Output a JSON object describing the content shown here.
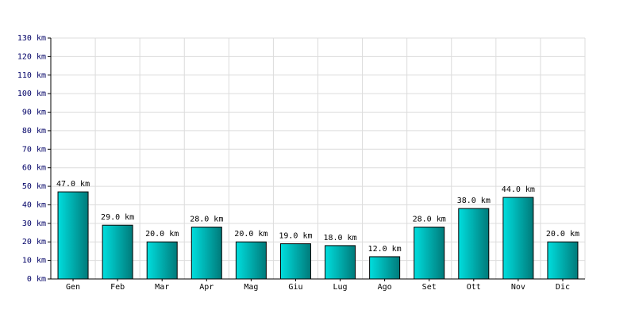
{
  "chart_data": {
    "type": "bar",
    "categories": [
      "Gen",
      "Feb",
      "Mar",
      "Apr",
      "Mag",
      "Giu",
      "Lug",
      "Ago",
      "Set",
      "Ott",
      "Nov",
      "Dic"
    ],
    "values": [
      47,
      29,
      20,
      28,
      20,
      19,
      18,
      12,
      28,
      38,
      44,
      20
    ],
    "value_labels": [
      "47.0 km",
      "29.0 km",
      "20.0 km",
      "28.0 km",
      "20.0 km",
      "19.0 km",
      "18.0 km",
      "12.0 km",
      "28.0 km",
      "38.0 km",
      "44.0 km",
      "20.0 km"
    ],
    "color": "#00dede",
    "ylim": [
      0,
      130
    ],
    "yticks": [
      {
        "value": 0,
        "label": "0 km"
      },
      {
        "value": 10,
        "label": "10 km"
      },
      {
        "value": 20,
        "label": "20 km"
      },
      {
        "value": 30,
        "label": "30 km"
      },
      {
        "value": 40,
        "label": "40 km"
      },
      {
        "value": 50,
        "label": "50 km"
      },
      {
        "value": 60,
        "label": "60 km"
      },
      {
        "value": 70,
        "label": "70 km"
      },
      {
        "value": 80,
        "label": "80 km"
      },
      {
        "value": 90,
        "label": "90 km"
      },
      {
        "value": 100,
        "label": "100 km"
      },
      {
        "value": 110,
        "label": "110 km"
      },
      {
        "value": 120,
        "label": "120 km"
      },
      {
        "value": 130,
        "label": "130 km"
      }
    ],
    "grid": true
  }
}
